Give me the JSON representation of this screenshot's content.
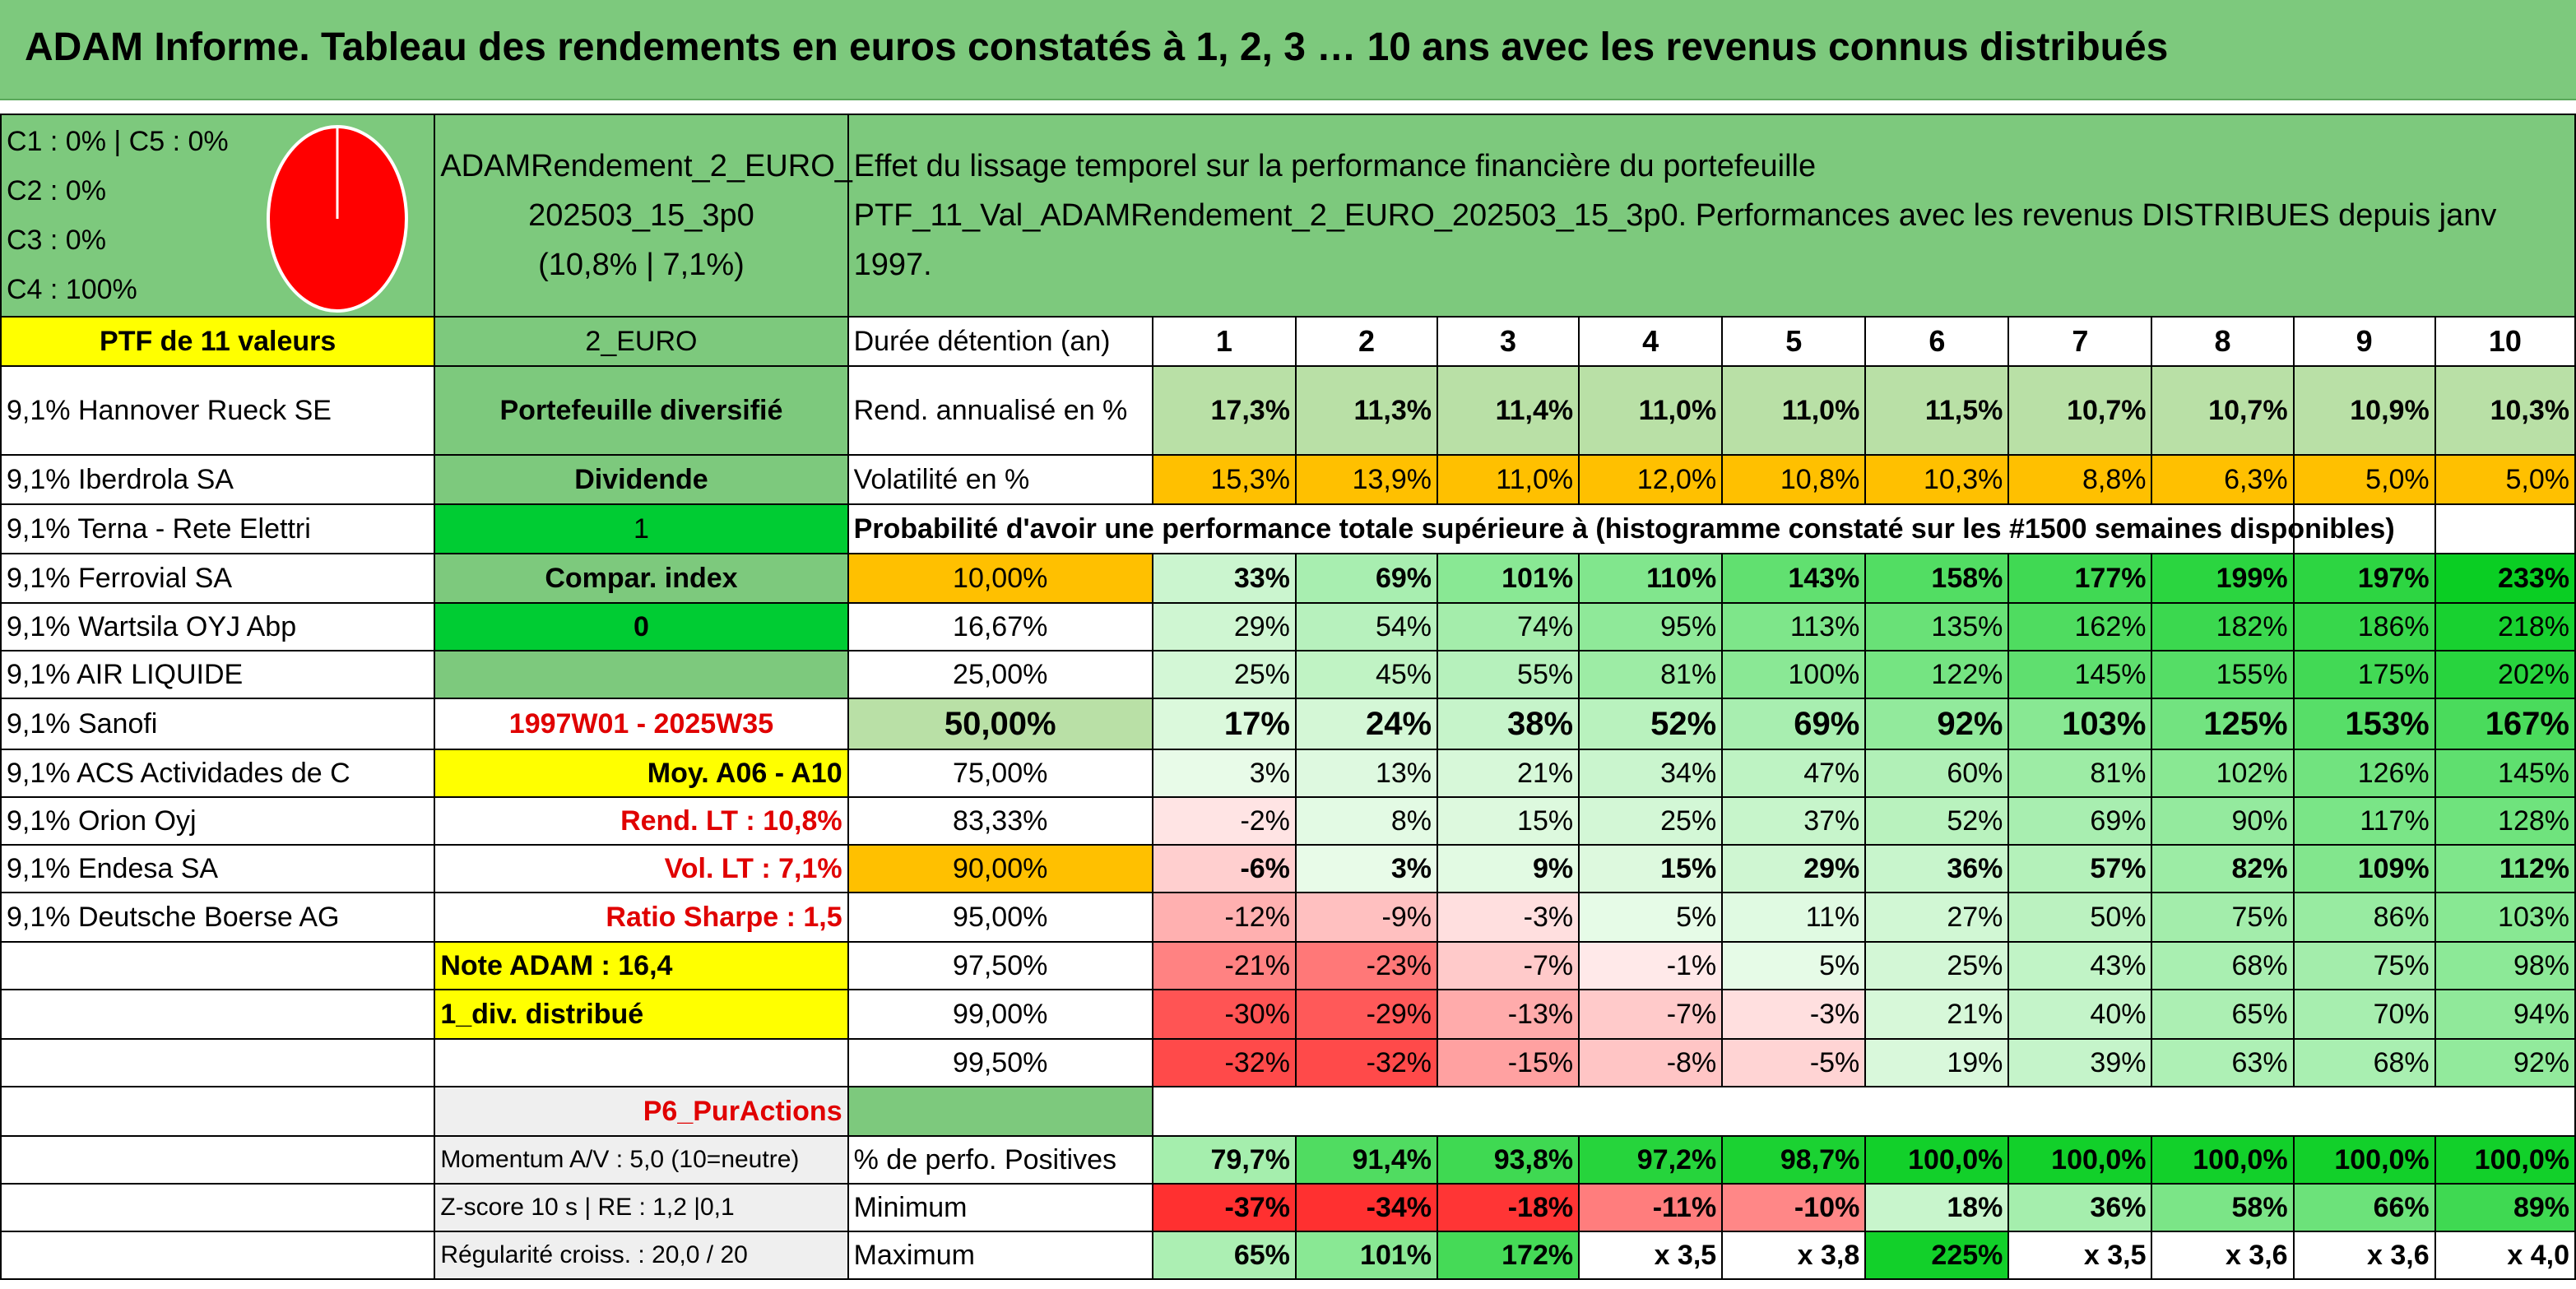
{
  "title": "ADAM Informe. Tableau des rendements en euros constatés à 1, 2, 3 … 10 ans avec les revenus connus distribués",
  "allocation": [
    "C1 : 0% | C5 : 0%",
    "C2 : 0%",
    "C3 : 0%",
    "C4 : 100%"
  ],
  "colors": {
    "pie": "#ff0000",
    "header_green": "#7dc97d",
    "yellow": "#ffff00",
    "orange": "#ffc000",
    "bright_green": "#00cc33"
  },
  "portfolio_name": [
    "ADAMRendement_2_EURO_",
    "202503_15_3p0",
    "(10,8% | 7,1%)"
  ],
  "description": [
    "Effet du lissage temporel sur la performance financière du portefeuille",
    "PTF_11_Val_ADAMRendement_2_EURO_202503_15_3p0. Performances avec les revenus DISTRIBUES depuis janv 1997."
  ],
  "left_header": "PTF de 11 valeurs",
  "holdings": [
    "9,1% Hannover Rueck SE",
    "9,1% Iberdrola SA",
    "9,1% Terna - Rete Elettri",
    "9,1% Ferrovial SA",
    "9,1% Wartsila OYJ Abp",
    "9,1% AIR LIQUIDE",
    "9,1% Sanofi",
    "9,1% ACS Actividades de C",
    "9,1% Orion Oyj",
    "9,1% Endesa SA",
    "9,1% Deutsche Boerse AG"
  ],
  "mid": {
    "code": "2_EURO",
    "type": "Portefeuille diversifié",
    "dividend_label": "Dividende",
    "dividend_value": "1",
    "compar_label": "Compar. index",
    "compar_value": "0",
    "period": "1997W01 - 2025W35",
    "moy": "Moy. A06 - A10",
    "rend_lt": "Rend. LT : 10,8%",
    "vol_lt": "Vol. LT : 7,1%",
    "sharpe": "Ratio Sharpe : 1,5",
    "note": "Note ADAM : 16,4",
    "div_distrib": "1_div. distribué",
    "puractions": "P6_PurActions",
    "momentum": "Momentum A/V : 5,0 (10=neutre)",
    "zscore": "Z-score 10 s | RE : 1,2 |0,1",
    "regularite": "Régularité croiss. : 20,0 / 20"
  },
  "years_header": "Durée détention (an)",
  "years": [
    "1",
    "2",
    "3",
    "4",
    "5",
    "6",
    "7",
    "8",
    "9",
    "10"
  ],
  "rend_label": "Rend. annualisé en %",
  "rend": [
    "17,3%",
    "11,3%",
    "11,4%",
    "11,0%",
    "11,0%",
    "11,5%",
    "10,7%",
    "10,7%",
    "10,9%",
    "10,3%"
  ],
  "vol_label": "Volatilité en %",
  "vol": [
    "15,3%",
    "13,9%",
    "11,0%",
    "12,0%",
    "10,8%",
    "10,3%",
    "8,8%",
    "6,3%",
    "5,0%",
    "5,0%"
  ],
  "prob_title": "Probabilité d'avoir une performance totale supérieure à (histogramme constaté sur les #1500 semaines disponibles)",
  "prob_rows": [
    {
      "p": "10,00%",
      "v": [
        "33%",
        "69%",
        "101%",
        "110%",
        "143%",
        "158%",
        "177%",
        "199%",
        "197%",
        "233%"
      ]
    },
    {
      "p": "16,67%",
      "v": [
        "29%",
        "54%",
        "74%",
        "95%",
        "113%",
        "135%",
        "162%",
        "182%",
        "186%",
        "218%"
      ]
    },
    {
      "p": "25,00%",
      "v": [
        "25%",
        "45%",
        "55%",
        "81%",
        "100%",
        "122%",
        "145%",
        "155%",
        "175%",
        "202%"
      ]
    },
    {
      "p": "50,00%",
      "v": [
        "17%",
        "24%",
        "38%",
        "52%",
        "69%",
        "92%",
        "103%",
        "125%",
        "153%",
        "167%"
      ]
    },
    {
      "p": "75,00%",
      "v": [
        "3%",
        "13%",
        "21%",
        "34%",
        "47%",
        "60%",
        "81%",
        "102%",
        "126%",
        "145%"
      ]
    },
    {
      "p": "83,33%",
      "v": [
        "-2%",
        "8%",
        "15%",
        "25%",
        "37%",
        "52%",
        "69%",
        "90%",
        "117%",
        "128%"
      ]
    },
    {
      "p": "90,00%",
      "v": [
        "-6%",
        "3%",
        "9%",
        "15%",
        "29%",
        "36%",
        "57%",
        "82%",
        "109%",
        "112%"
      ]
    },
    {
      "p": "95,00%",
      "v": [
        "-12%",
        "-9%",
        "-3%",
        "5%",
        "11%",
        "27%",
        "50%",
        "75%",
        "86%",
        "103%"
      ]
    },
    {
      "p": "97,50%",
      "v": [
        "-21%",
        "-23%",
        "-7%",
        "-1%",
        "5%",
        "25%",
        "43%",
        "68%",
        "75%",
        "98%"
      ]
    },
    {
      "p": "99,00%",
      "v": [
        "-30%",
        "-29%",
        "-13%",
        "-7%",
        "-3%",
        "21%",
        "40%",
        "65%",
        "70%",
        "94%"
      ]
    },
    {
      "p": "99,50%",
      "v": [
        "-32%",
        "-32%",
        "-15%",
        "-8%",
        "-5%",
        "19%",
        "39%",
        "63%",
        "68%",
        "92%"
      ]
    }
  ],
  "pos_label": "% de perfo. Positives",
  "pos": [
    "79,7%",
    "91,4%",
    "93,8%",
    "97,2%",
    "98,7%",
    "100,0%",
    "100,0%",
    "100,0%",
    "100,0%",
    "100,0%"
  ],
  "min_label": "Minimum",
  "min": [
    "-37%",
    "-34%",
    "-18%",
    "-11%",
    "-10%",
    "18%",
    "36%",
    "58%",
    "66%",
    "89%"
  ],
  "max_label": "Maximum",
  "max": [
    "65%",
    "101%",
    "172%",
    "x 3,5",
    "x 3,8",
    "225%",
    "x 3,5",
    "x 3,6",
    "x 3,6",
    "x 4,0"
  ]
}
